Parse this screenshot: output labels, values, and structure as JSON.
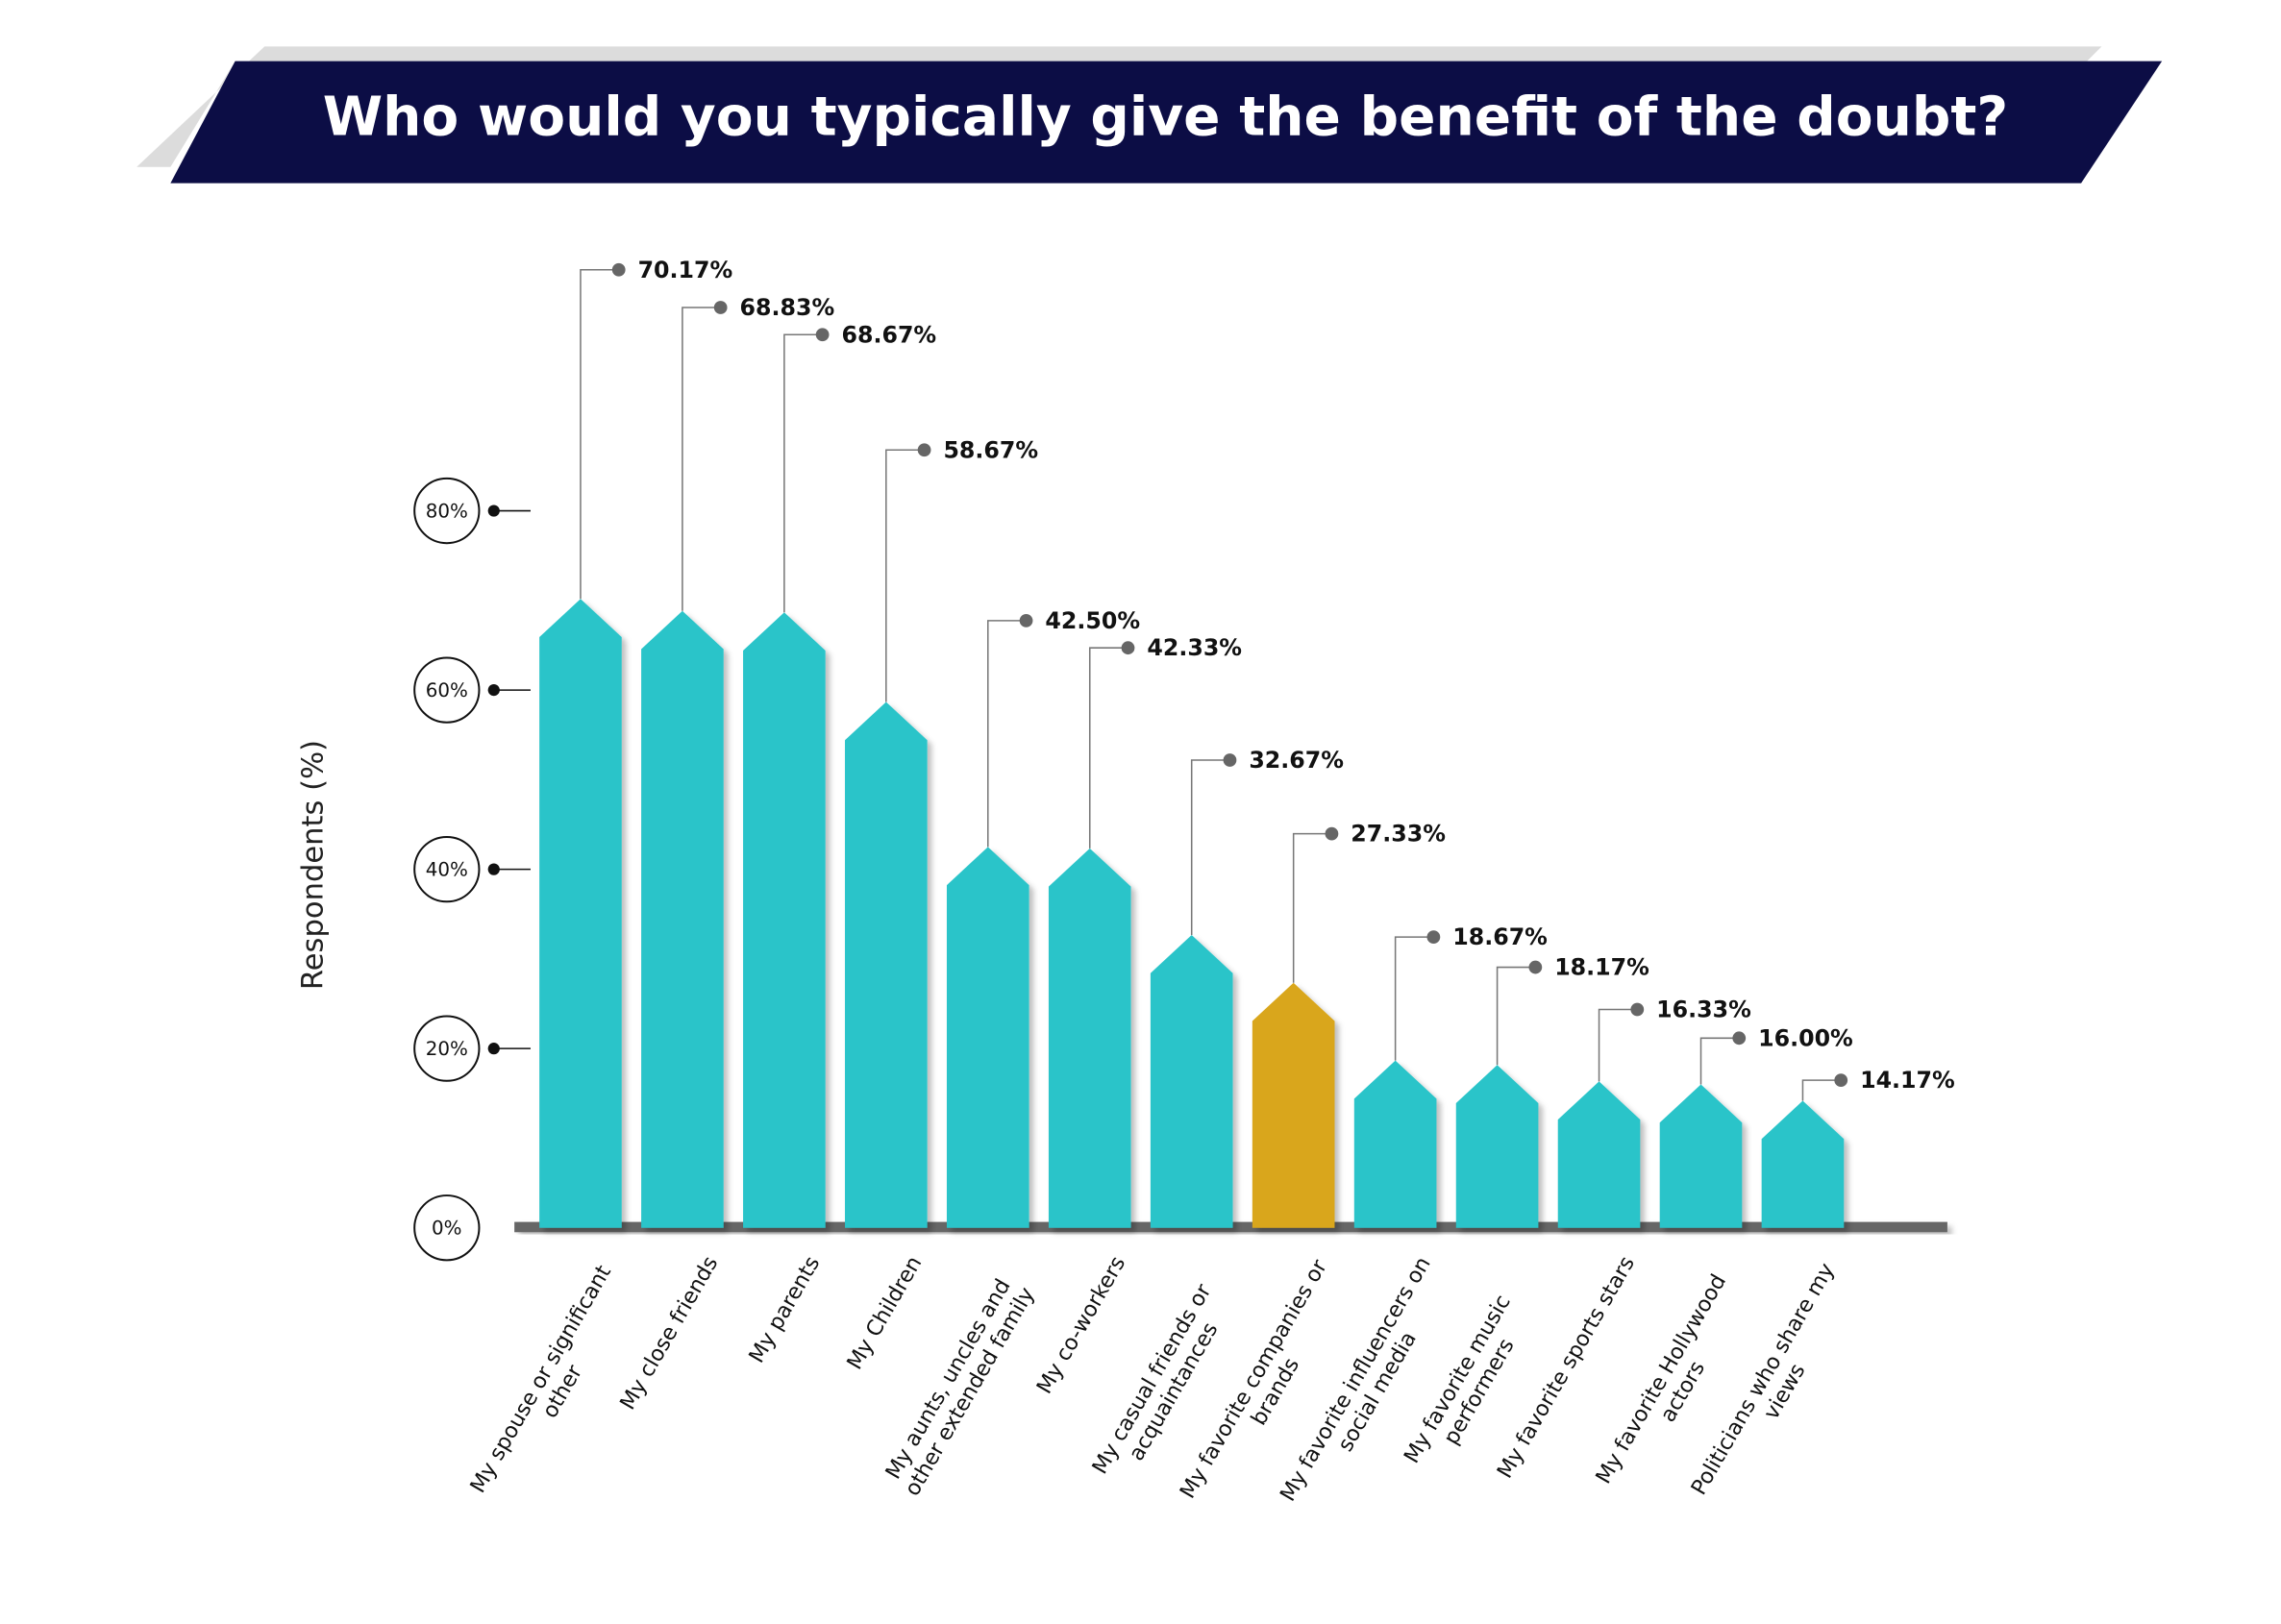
{
  "chart_data": {
    "type": "bar",
    "title": "Who would you typically give the benefit of the doubt?",
    "y_label": "Respondents (%)",
    "categories": [
      "My spouse or significant other",
      "My close friends",
      "My parents",
      "My Children",
      "My aunts, uncles and other extended family",
      "My co-workers",
      "My casual friends or acquaintances",
      "My favorite companies or brands",
      "My favorite influencers on social media",
      "My favorite music performers",
      "My favorite sports stars",
      "My favorite Hollywood actors",
      "Politicians who share my views"
    ],
    "values": [
      70.17,
      68.83,
      68.67,
      58.67,
      42.5,
      42.33,
      32.67,
      27.33,
      18.67,
      18.17,
      16.33,
      16.0,
      14.17
    ],
    "value_labels": [
      "70.17%",
      "68.83%",
      "68.67%",
      "58.67%",
      "42.50%",
      "42.33%",
      "32.67%",
      "27.33%",
      "18.67%",
      "18.17%",
      "16.33%",
      "16.00%",
      "14.17%"
    ],
    "colors": [
      "#29c4c9",
      "#29c4c9",
      "#29c4c9",
      "#29c4c9",
      "#29c4c9",
      "#29c4c9",
      "#29c4c9",
      "#d9a61a",
      "#29c4c9",
      "#29c4c9",
      "#29c4c9",
      "#29c4c9",
      "#29c4c9"
    ],
    "ylim": [
      0,
      80
    ],
    "yticks": [
      {
        "value": 0,
        "label": "0%"
      },
      {
        "value": 20,
        "label": "20%"
      },
      {
        "value": 40,
        "label": "40%"
      },
      {
        "value": 60,
        "label": "60%"
      },
      {
        "value": 80,
        "label": "80%"
      }
    ]
  }
}
